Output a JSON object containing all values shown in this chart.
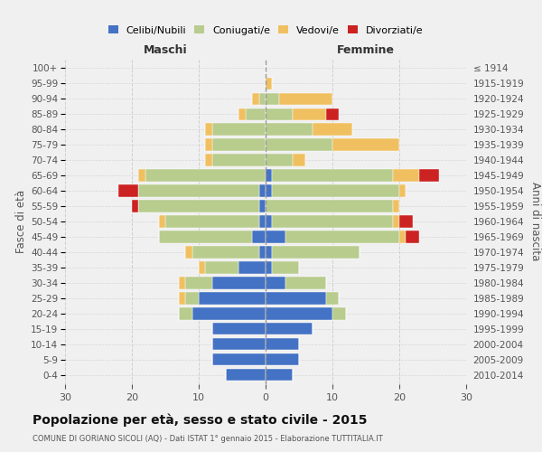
{
  "age_groups": [
    "0-4",
    "5-9",
    "10-14",
    "15-19",
    "20-24",
    "25-29",
    "30-34",
    "35-39",
    "40-44",
    "45-49",
    "50-54",
    "55-59",
    "60-64",
    "65-69",
    "70-74",
    "75-79",
    "80-84",
    "85-89",
    "90-94",
    "95-99",
    "100+"
  ],
  "birth_years": [
    "2010-2014",
    "2005-2009",
    "2000-2004",
    "1995-1999",
    "1990-1994",
    "1985-1989",
    "1980-1984",
    "1975-1979",
    "1970-1974",
    "1965-1969",
    "1960-1964",
    "1955-1959",
    "1950-1954",
    "1945-1949",
    "1940-1944",
    "1935-1939",
    "1930-1934",
    "1925-1929",
    "1920-1924",
    "1915-1919",
    "≤ 1914"
  ],
  "male": {
    "celibi": [
      6,
      8,
      8,
      8,
      11,
      10,
      8,
      4,
      1,
      2,
      1,
      1,
      1,
      0,
      0,
      0,
      0,
      0,
      0,
      0,
      0
    ],
    "coniugati": [
      0,
      0,
      0,
      0,
      2,
      2,
      4,
      5,
      10,
      14,
      14,
      18,
      18,
      18,
      8,
      8,
      8,
      3,
      1,
      0,
      0
    ],
    "vedovi": [
      0,
      0,
      0,
      0,
      0,
      1,
      1,
      1,
      1,
      0,
      1,
      0,
      0,
      1,
      1,
      1,
      1,
      1,
      1,
      0,
      0
    ],
    "divorziati": [
      0,
      0,
      0,
      0,
      0,
      0,
      0,
      0,
      0,
      0,
      0,
      1,
      3,
      0,
      0,
      0,
      0,
      0,
      0,
      0,
      0
    ]
  },
  "female": {
    "nubili": [
      4,
      5,
      5,
      7,
      10,
      9,
      3,
      1,
      1,
      3,
      1,
      0,
      1,
      1,
      0,
      0,
      0,
      0,
      0,
      0,
      0
    ],
    "coniugate": [
      0,
      0,
      0,
      0,
      2,
      2,
      6,
      4,
      13,
      17,
      18,
      19,
      19,
      18,
      4,
      10,
      7,
      4,
      2,
      0,
      0
    ],
    "vedove": [
      0,
      0,
      0,
      0,
      0,
      0,
      0,
      0,
      0,
      1,
      1,
      1,
      1,
      4,
      2,
      10,
      6,
      5,
      8,
      1,
      0
    ],
    "divorziate": [
      0,
      0,
      0,
      0,
      0,
      0,
      0,
      0,
      0,
      2,
      2,
      0,
      0,
      3,
      0,
      0,
      0,
      2,
      0,
      0,
      0
    ]
  },
  "colors": {
    "celibi": "#4472C4",
    "coniugati": "#b8cc8e",
    "vedovi": "#f0c060",
    "divorziati": "#cc2222"
  },
  "title": "Popolazione per età, sesso e stato civile - 2015",
  "subtitle": "COMUNE DI GORIANO SICOLI (AQ) - Dati ISTAT 1° gennaio 2015 - Elaborazione TUTTITALIA.IT",
  "xlabel_left": "Maschi",
  "xlabel_right": "Femmine",
  "ylabel_left": "Fasce di età",
  "ylabel_right": "Anni di nascita",
  "xlim": 30,
  "legend_labels": [
    "Celibi/Nubili",
    "Coniugati/e",
    "Vedovi/e",
    "Divorziati/e"
  ],
  "bg_color": "#f0f0f0",
  "grid_color": "#cccccc"
}
